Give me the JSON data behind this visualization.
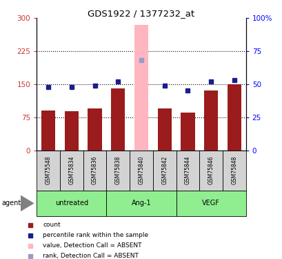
{
  "title": "GDS1922 / 1377232_at",
  "samples": [
    "GSM75548",
    "GSM75834",
    "GSM75836",
    "GSM75838",
    "GSM75840",
    "GSM75842",
    "GSM75844",
    "GSM75846",
    "GSM75848"
  ],
  "counts": [
    90,
    88,
    95,
    140,
    285,
    95,
    85,
    135,
    150
  ],
  "ranks": [
    48,
    48,
    49,
    52,
    68,
    49,
    45,
    52,
    53
  ],
  "absent": [
    false,
    false,
    false,
    false,
    true,
    false,
    false,
    false,
    false
  ],
  "bar_color_present": "#9B1C1C",
  "bar_color_absent": "#FFB6C1",
  "rank_color_present": "#1C1C8B",
  "rank_color_absent": "#9999CC",
  "left_ylim": [
    0,
    300
  ],
  "right_ylim": [
    0,
    100
  ],
  "left_yticks": [
    0,
    75,
    150,
    225,
    300
  ],
  "right_yticks": [
    0,
    25,
    50,
    75,
    100
  ],
  "right_yticklabels": [
    "0",
    "25",
    "50",
    "75",
    "100%"
  ],
  "hline_vals": [
    75,
    150,
    225
  ],
  "groups": [
    {
      "label": "untreated",
      "start": 0,
      "end": 3
    },
    {
      "label": "Ang-1",
      "start": 3,
      "end": 6
    },
    {
      "label": "VEGF",
      "start": 6,
      "end": 9
    }
  ],
  "group_color": "#90EE90",
  "sample_box_color": "#D3D3D3",
  "legend": [
    {
      "label": "count",
      "color": "#9B1C1C",
      "marker": "s"
    },
    {
      "label": "percentile rank within the sample",
      "color": "#1C1C8B",
      "marker": "s"
    },
    {
      "label": "value, Detection Call = ABSENT",
      "color": "#FFB6C1",
      "marker": "s"
    },
    {
      "label": "rank, Detection Call = ABSENT",
      "color": "#9999CC",
      "marker": "s"
    }
  ]
}
